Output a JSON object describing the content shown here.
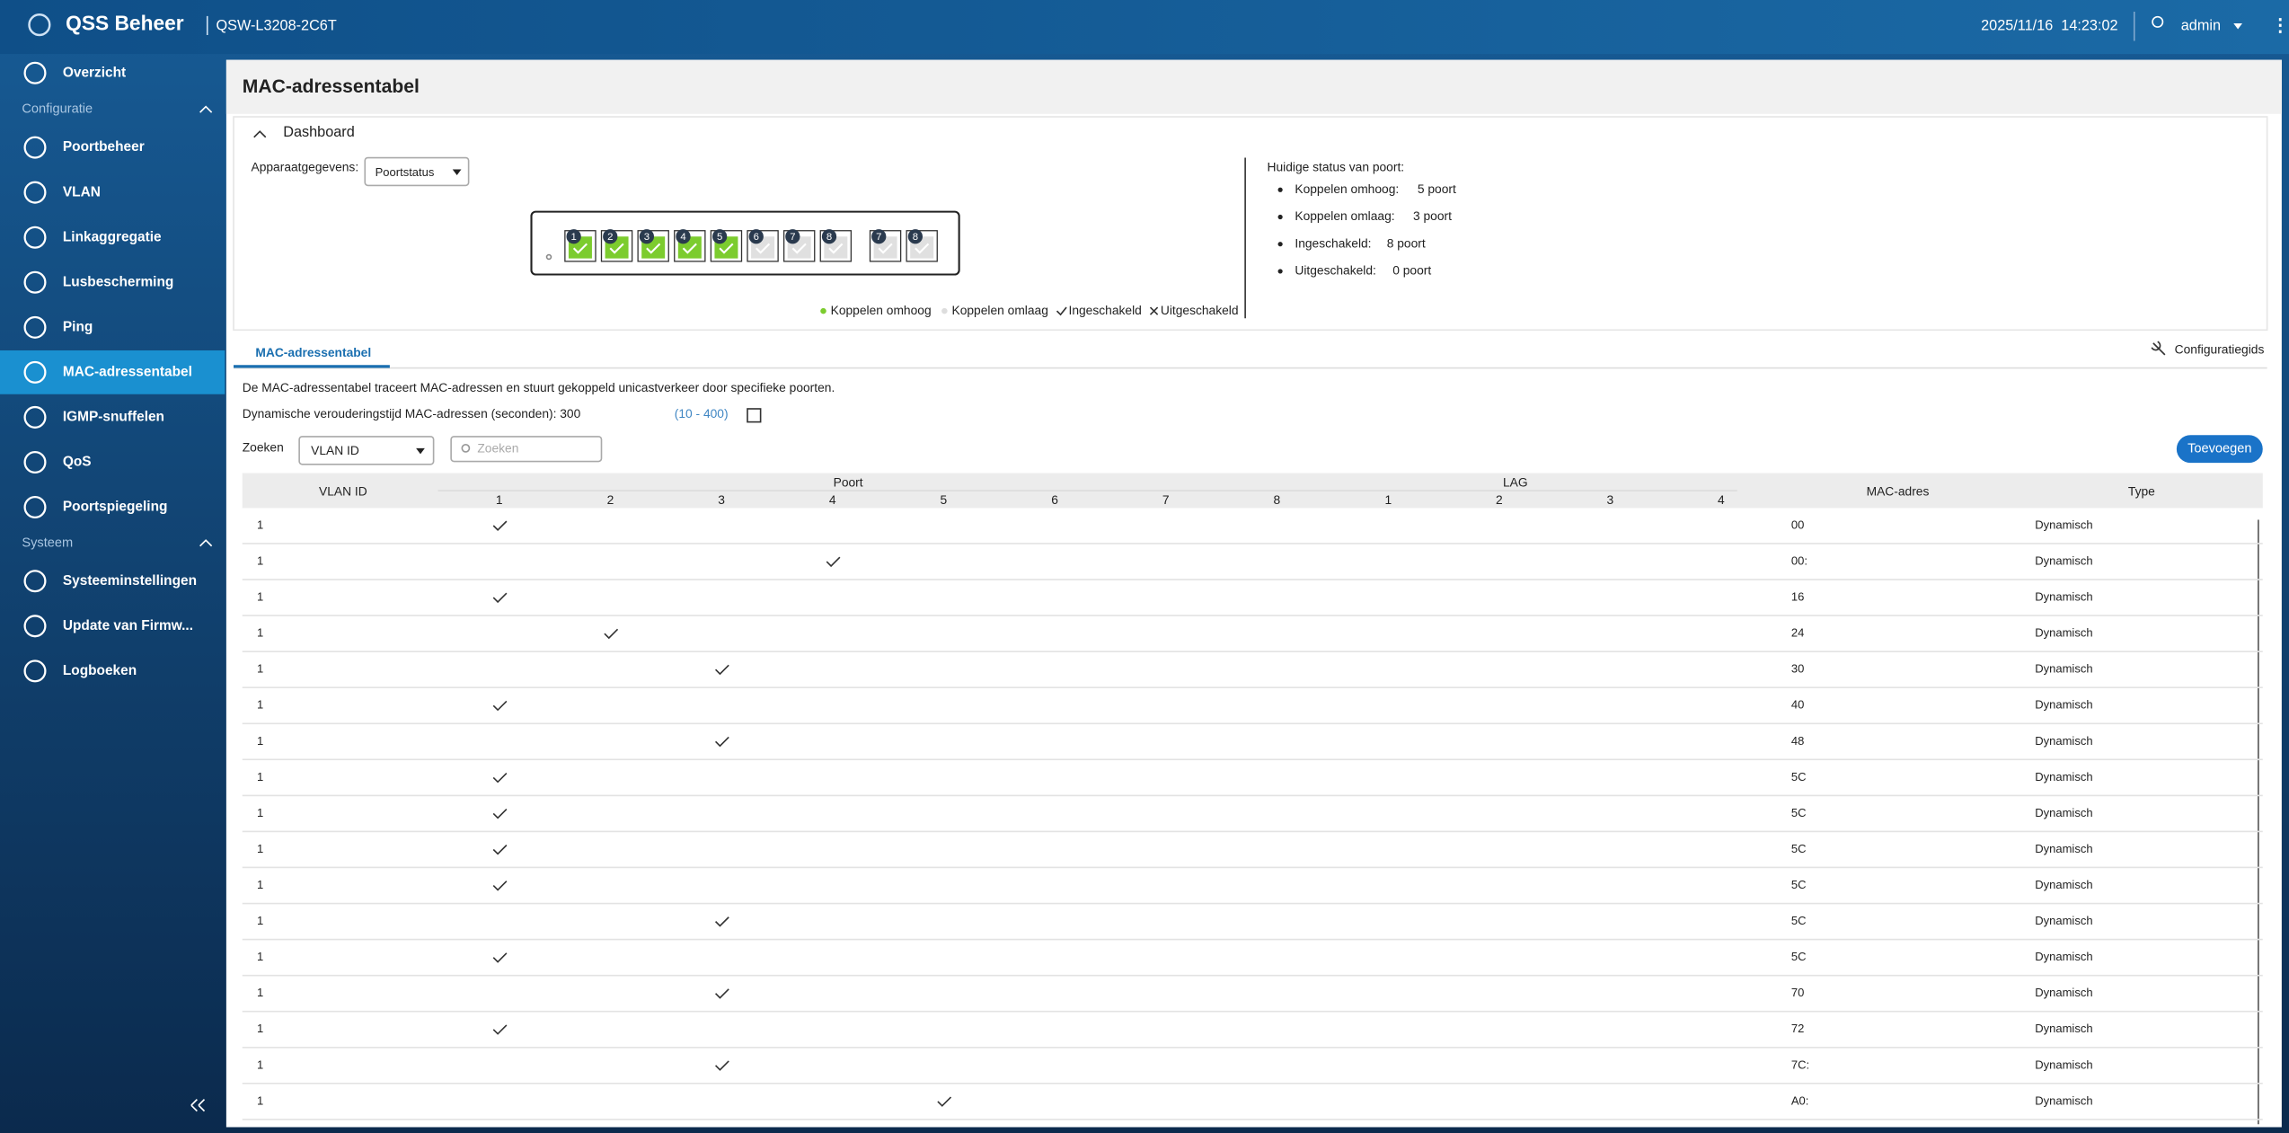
{
  "header": {
    "brand": "QSS Beheer",
    "model": "QSW-L3208-2C6T",
    "datetime": "2025/11/16  14:23:02",
    "user": "admin"
  },
  "sidebar": {
    "overview": "Overzicht",
    "groups": [
      {
        "title": "Configuratie",
        "items": [
          "Poortbeheer",
          "VLAN",
          "Linkaggregatie",
          "Lusbescherming",
          "Ping",
          "MAC-adressentabel",
          "IGMP-snuffelen",
          "QoS",
          "Poortspiegeling"
        ]
      },
      {
        "title": "Systeem",
        "items": [
          "Systeeminstellingen",
          "Update van Firmw...",
          "Logboeken"
        ]
      }
    ],
    "active": {
      "group": 0,
      "item": 5
    }
  },
  "page": {
    "title": "MAC-adressentabel"
  },
  "dashboard": {
    "title": "Dashboard",
    "device_label": "Apparaatgegevens:",
    "device_select": "Poortstatus",
    "ports": [
      {
        "label": "1",
        "linked": true
      },
      {
        "label": "2",
        "linked": true
      },
      {
        "label": "3",
        "linked": true
      },
      {
        "label": "4",
        "linked": true
      },
      {
        "label": "5",
        "linked": true
      },
      {
        "label": "6",
        "linked": false
      },
      {
        "label": "7",
        "linked": false
      },
      {
        "label": "8",
        "linked": false
      }
    ],
    "sfp_ports": [
      {
        "label": "7",
        "linked": false
      },
      {
        "label": "8",
        "linked": false
      }
    ],
    "legend": [
      "Koppelen omhoog",
      "Koppelen omlaag",
      "Ingeschakeld",
      "Uitgeschakeld"
    ],
    "status_title": "Huidige status van poort:",
    "status": [
      {
        "label": "Koppelen omhoog:",
        "value": "5 poort"
      },
      {
        "label": "Koppelen omlaag:",
        "value": "3 poort"
      },
      {
        "label": "Ingeschakeld:",
        "value": "8 poort"
      },
      {
        "label": "Uitgeschakeld:",
        "value": "0 poort"
      }
    ]
  },
  "tab": {
    "label": "MAC-adressentabel",
    "guide": "Configuratiegids"
  },
  "description": "De MAC-adressentabel traceert MAC-adressen en stuurt gekoppeld unicastverkeer door specifieke poorten.",
  "aging": {
    "label": "Dynamische verouderingstijd MAC-adressen (seconden): 300",
    "range": "(10 - 400)"
  },
  "search": {
    "label": "Zoeken",
    "field": "VLAN ID",
    "placeholder": "Zoeken",
    "add_button": "Toevoegen"
  },
  "table": {
    "headers": {
      "vlan": "VLAN ID",
      "port": "Poort",
      "lag": "LAG",
      "mac": "MAC-adres",
      "type": "Type"
    },
    "port_columns": [
      "1",
      "2",
      "3",
      "4",
      "5",
      "6",
      "7",
      "8"
    ],
    "lag_columns": [
      "1",
      "2",
      "3",
      "4"
    ],
    "rows": [
      {
        "vlan": 1,
        "port": 1,
        "mac": "00",
        "type": "Dynamisch"
      },
      {
        "vlan": 1,
        "port": 4,
        "mac": "00:",
        "type": "Dynamisch"
      },
      {
        "vlan": 1,
        "port": 1,
        "mac": "16",
        "type": "Dynamisch"
      },
      {
        "vlan": 1,
        "port": 2,
        "mac": "24",
        "type": "Dynamisch"
      },
      {
        "vlan": 1,
        "port": 3,
        "mac": "30",
        "type": "Dynamisch"
      },
      {
        "vlan": 1,
        "port": 1,
        "mac": "40",
        "type": "Dynamisch"
      },
      {
        "vlan": 1,
        "port": 3,
        "mac": "48",
        "type": "Dynamisch"
      },
      {
        "vlan": 1,
        "port": 1,
        "mac": "5C",
        "type": "Dynamisch"
      },
      {
        "vlan": 1,
        "port": 1,
        "mac": "5C",
        "type": "Dynamisch"
      },
      {
        "vlan": 1,
        "port": 1,
        "mac": "5C",
        "type": "Dynamisch"
      },
      {
        "vlan": 1,
        "port": 1,
        "mac": "5C",
        "type": "Dynamisch"
      },
      {
        "vlan": 1,
        "port": 3,
        "mac": "5C",
        "type": "Dynamisch"
      },
      {
        "vlan": 1,
        "port": 1,
        "mac": "5C",
        "type": "Dynamisch"
      },
      {
        "vlan": 1,
        "port": 3,
        "mac": "70",
        "type": "Dynamisch"
      },
      {
        "vlan": 1,
        "port": 1,
        "mac": "72",
        "type": "Dynamisch"
      },
      {
        "vlan": 1,
        "port": 3,
        "mac": "7C:",
        "type": "Dynamisch"
      },
      {
        "vlan": 1,
        "port": 5,
        "mac": "A0:",
        "type": "Dynamisch"
      }
    ]
  }
}
